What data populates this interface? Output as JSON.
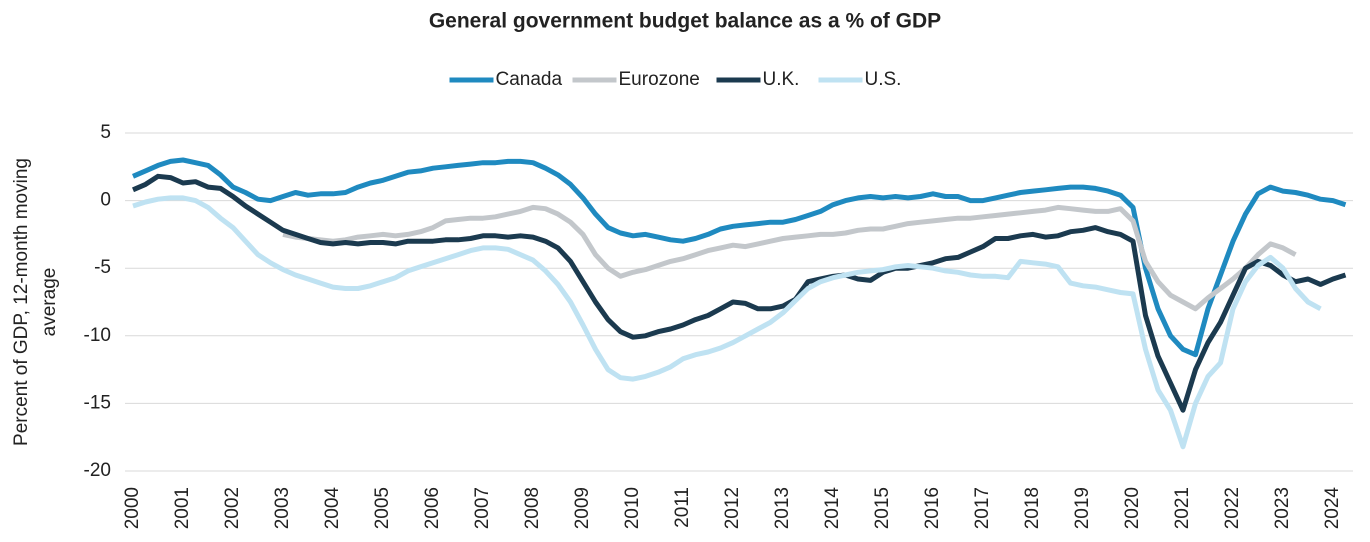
{
  "chart_data": {
    "type": "line",
    "title": "General government budget balance as a % of GDP",
    "ylabel": [
      "Percent of GDP, 12-month moving",
      "average"
    ],
    "x": [
      2000,
      2000.25,
      2000.5,
      2000.75,
      2001,
      2001.25,
      2001.5,
      2001.75,
      2002,
      2002.25,
      2002.5,
      2002.75,
      2003,
      2003.25,
      2003.5,
      2003.75,
      2004,
      2004.25,
      2004.5,
      2004.75,
      2005,
      2005.25,
      2005.5,
      2005.75,
      2006,
      2006.25,
      2006.5,
      2006.75,
      2007,
      2007.25,
      2007.5,
      2007.75,
      2008,
      2008.25,
      2008.5,
      2008.75,
      2009,
      2009.25,
      2009.5,
      2009.75,
      2010,
      2010.25,
      2010.5,
      2010.75,
      2011,
      2011.25,
      2011.5,
      2011.75,
      2012,
      2012.25,
      2012.5,
      2012.75,
      2013,
      2013.25,
      2013.5,
      2013.75,
      2014,
      2014.25,
      2014.5,
      2014.75,
      2015,
      2015.25,
      2015.5,
      2015.75,
      2016,
      2016.25,
      2016.5,
      2016.75,
      2017,
      2017.25,
      2017.5,
      2017.75,
      2018,
      2018.25,
      2018.5,
      2018.75,
      2019,
      2019.25,
      2019.5,
      2019.75,
      2020,
      2020.25,
      2020.5,
      2020.75,
      2021,
      2021.25,
      2021.5,
      2021.75,
      2022,
      2022.25,
      2022.5,
      2022.75,
      2023,
      2023.25,
      2023.5,
      2023.75,
      2024,
      2024.25
    ],
    "series": [
      {
        "name": "Canada",
        "color": "#1f8ac0",
        "values": [
          1.8,
          2.2,
          2.6,
          2.9,
          3.0,
          2.8,
          2.6,
          1.9,
          1.0,
          0.6,
          0.1,
          0.0,
          0.3,
          0.6,
          0.4,
          0.5,
          0.5,
          0.6,
          1.0,
          1.3,
          1.5,
          1.8,
          2.1,
          2.2,
          2.4,
          2.5,
          2.6,
          2.7,
          2.8,
          2.8,
          2.9,
          2.9,
          2.8,
          2.4,
          1.9,
          1.2,
          0.2,
          -1.0,
          -2.0,
          -2.4,
          -2.6,
          -2.5,
          -2.7,
          -2.9,
          -3.0,
          -2.8,
          -2.5,
          -2.1,
          -1.9,
          -1.8,
          -1.7,
          -1.6,
          -1.6,
          -1.4,
          -1.1,
          -0.8,
          -0.3,
          0.0,
          0.2,
          0.3,
          0.2,
          0.3,
          0.2,
          0.3,
          0.5,
          0.3,
          0.3,
          0.0,
          0.0,
          0.2,
          0.4,
          0.6,
          0.7,
          0.8,
          0.9,
          1.0,
          1.0,
          0.9,
          0.7,
          0.4,
          -0.5,
          -5.0,
          -8.0,
          -10.0,
          -11.0,
          -11.4,
          -8.0,
          -5.5,
          -3.0,
          -1.0,
          0.5,
          1.0,
          0.7,
          0.6,
          0.4,
          0.1,
          0.0,
          -0.3
        ]
      },
      {
        "name": "Eurozone",
        "color": "#c3c7cb",
        "values": [
          null,
          null,
          null,
          null,
          null,
          null,
          null,
          null,
          null,
          null,
          null,
          null,
          -2.5,
          -2.7,
          -2.8,
          -2.9,
          -3.0,
          -2.9,
          -2.7,
          -2.6,
          -2.5,
          -2.6,
          -2.5,
          -2.3,
          -2.0,
          -1.5,
          -1.4,
          -1.3,
          -1.3,
          -1.2,
          -1.0,
          -0.8,
          -0.5,
          -0.6,
          -1.0,
          -1.6,
          -2.5,
          -4.0,
          -5.0,
          -5.6,
          -5.3,
          -5.1,
          -4.8,
          -4.5,
          -4.3,
          -4.0,
          -3.7,
          -3.5,
          -3.3,
          -3.4,
          -3.2,
          -3.0,
          -2.8,
          -2.7,
          -2.6,
          -2.5,
          -2.5,
          -2.4,
          -2.2,
          -2.1,
          -2.1,
          -1.9,
          -1.7,
          -1.6,
          -1.5,
          -1.4,
          -1.3,
          -1.3,
          -1.2,
          -1.1,
          -1.0,
          -0.9,
          -0.8,
          -0.7,
          -0.5,
          -0.6,
          -0.7,
          -0.8,
          -0.8,
          -0.6,
          -1.5,
          -4.5,
          -6.0,
          -7.0,
          -7.5,
          -8.0,
          -7.2,
          -6.5,
          -5.8,
          -5.0,
          -4.0,
          -3.2,
          -3.5,
          -4.0,
          null,
          null,
          null,
          null
        ]
      },
      {
        "name": "U.K.",
        "color": "#1b3a4f",
        "values": [
          0.8,
          1.2,
          1.8,
          1.7,
          1.3,
          1.4,
          1.0,
          0.9,
          0.3,
          -0.4,
          -1.0,
          -1.6,
          -2.2,
          -2.5,
          -2.8,
          -3.1,
          -3.2,
          -3.1,
          -3.2,
          -3.1,
          -3.1,
          -3.2,
          -3.0,
          -3.0,
          -3.0,
          -2.9,
          -2.9,
          -2.8,
          -2.6,
          -2.6,
          -2.7,
          -2.6,
          -2.7,
          -3.0,
          -3.5,
          -4.5,
          -6.0,
          -7.5,
          -8.8,
          -9.7,
          -10.1,
          -10.0,
          -9.7,
          -9.5,
          -9.2,
          -8.8,
          -8.5,
          -8.0,
          -7.5,
          -7.6,
          -8.0,
          -8.0,
          -7.8,
          -7.3,
          -6.0,
          -5.8,
          -5.6,
          -5.5,
          -5.8,
          -5.9,
          -5.3,
          -5.0,
          -5.0,
          -4.8,
          -4.6,
          -4.3,
          -4.2,
          -3.8,
          -3.4,
          -2.8,
          -2.8,
          -2.6,
          -2.5,
          -2.7,
          -2.6,
          -2.3,
          -2.2,
          -2.0,
          -2.3,
          -2.5,
          -3.0,
          -8.5,
          -11.5,
          -13.5,
          -15.5,
          -12.5,
          -10.5,
          -9.0,
          -7.0,
          -5.0,
          -4.5,
          -4.8,
          -5.5,
          -6.0,
          -5.8,
          -6.2,
          -5.8,
          -5.5
        ]
      },
      {
        "name": "U.S.",
        "color": "#bfe2f2",
        "values": [
          -0.4,
          -0.1,
          0.1,
          0.2,
          0.2,
          0.0,
          -0.5,
          -1.3,
          -2.0,
          -3.0,
          -4.0,
          -4.6,
          -5.1,
          -5.5,
          -5.8,
          -6.1,
          -6.4,
          -6.5,
          -6.5,
          -6.3,
          -6.0,
          -5.7,
          -5.2,
          -4.9,
          -4.6,
          -4.3,
          -4.0,
          -3.7,
          -3.5,
          -3.5,
          -3.6,
          -4.0,
          -4.4,
          -5.2,
          -6.2,
          -7.5,
          -9.2,
          -11.0,
          -12.5,
          -13.1,
          -13.2,
          -13.0,
          -12.7,
          -12.3,
          -11.7,
          -11.4,
          -11.2,
          -10.9,
          -10.5,
          -10.0,
          -9.5,
          -9.0,
          -8.3,
          -7.4,
          -6.5,
          -6.0,
          -5.7,
          -5.5,
          -5.3,
          -5.2,
          -5.1,
          -4.9,
          -4.8,
          -4.9,
          -5.0,
          -5.2,
          -5.3,
          -5.5,
          -5.6,
          -5.6,
          -5.7,
          -4.5,
          -4.6,
          -4.7,
          -4.9,
          -6.1,
          -6.3,
          -6.4,
          -6.6,
          -6.8,
          -6.9,
          -11.0,
          -14.0,
          -15.5,
          -18.2,
          -15.0,
          -13.0,
          -12.0,
          -8.0,
          -6.0,
          -4.8,
          -4.2,
          -5.0,
          -6.5,
          -7.5,
          -8.0,
          null,
          null
        ]
      }
    ],
    "xlim": [
      2000,
      2024.4
    ],
    "xticks": [
      2000,
      2001,
      2002,
      2003,
      2004,
      2005,
      2006,
      2007,
      2008,
      2009,
      2010,
      2011,
      2012,
      2013,
      2014,
      2015,
      2016,
      2017,
      2018,
      2019,
      2020,
      2021,
      2022,
      2023,
      2024
    ],
    "ylim": [
      -20,
      5
    ],
    "yticks": [
      -20,
      -15,
      -10,
      -5,
      0,
      5
    ],
    "grid": true,
    "legend": "top"
  }
}
